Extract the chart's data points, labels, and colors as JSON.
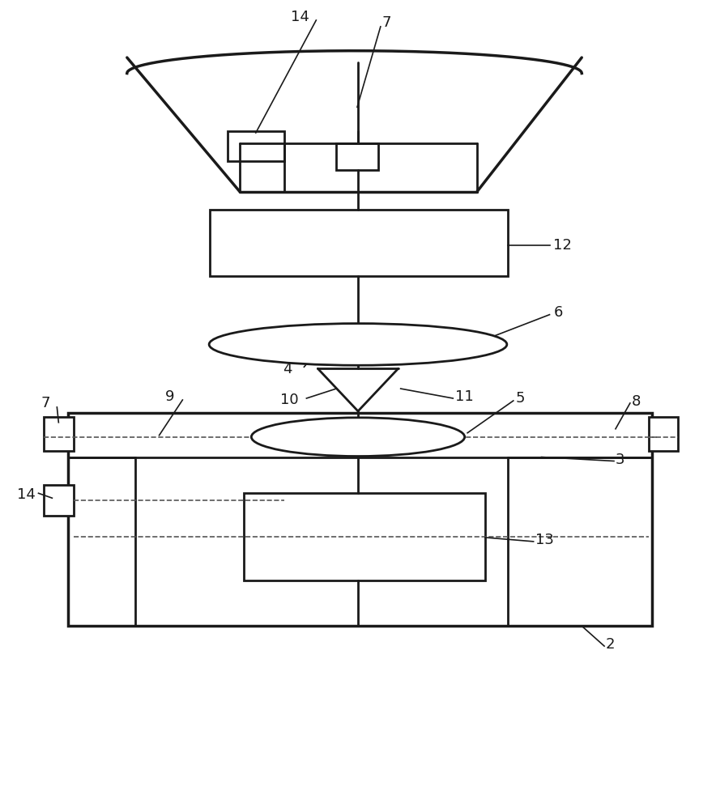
{
  "bg_color": "#ffffff",
  "line_color": "#1a1a1a",
  "lw": 2.0,
  "lw_thick": 2.5,
  "thin_lw": 1.2,
  "label_fontsize": 13
}
